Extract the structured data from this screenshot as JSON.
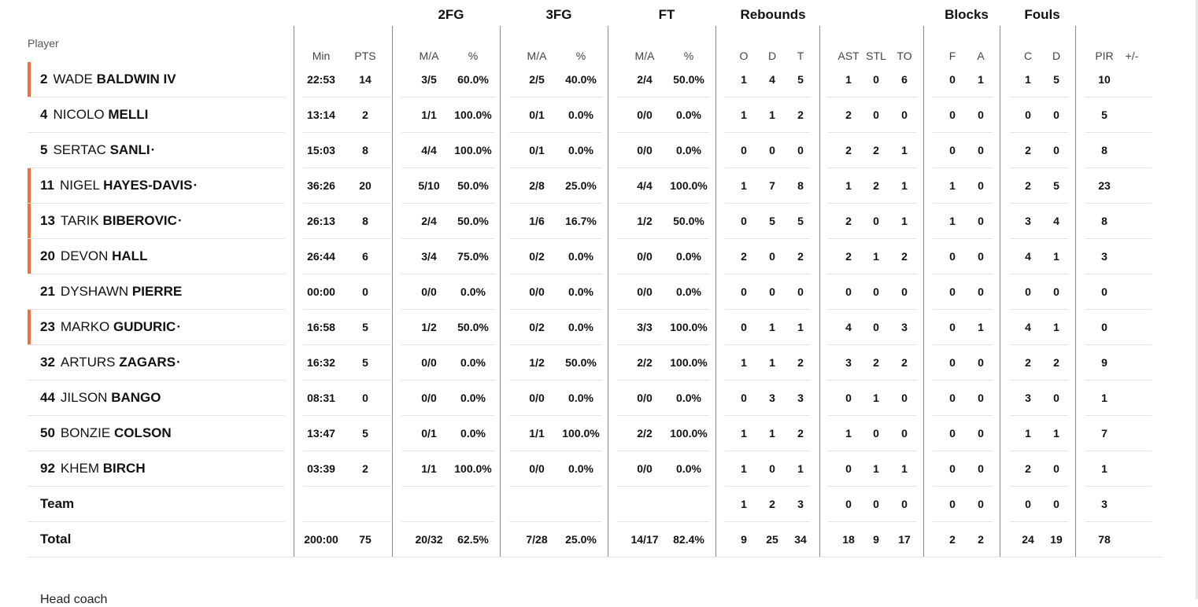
{
  "header": {
    "player_label": "Player",
    "groups": {
      "fg2": "2FG",
      "fg3": "3FG",
      "ft": "FT",
      "rebounds": "Rebounds",
      "blocks": "Blocks",
      "fouls": "Fouls"
    },
    "columns": [
      "Min",
      "PTS",
      "M/A",
      "%",
      "M/A",
      "%",
      "M/A",
      "%",
      "O",
      "D",
      "T",
      "AST",
      "STL",
      "TO",
      "F",
      "A",
      "C",
      "D",
      "PIR",
      "+/-"
    ]
  },
  "players": [
    {
      "no": "2",
      "first": "WADE",
      "last": "BALDWIN IV",
      "mark": "",
      "starter": true,
      "stats": [
        "22:53",
        "14",
        "3/5",
        "60.0%",
        "2/5",
        "40.0%",
        "2/4",
        "50.0%",
        "1",
        "4",
        "5",
        "1",
        "0",
        "6",
        "0",
        "1",
        "1",
        "5",
        "10",
        ""
      ]
    },
    {
      "no": "4",
      "first": "NICOLO",
      "last": "MELLI",
      "mark": "",
      "starter": false,
      "stats": [
        "13:14",
        "2",
        "1/1",
        "100.0%",
        "0/1",
        "0.0%",
        "0/0",
        "0.0%",
        "1",
        "1",
        "2",
        "2",
        "0",
        "0",
        "0",
        "0",
        "0",
        "0",
        "5",
        ""
      ]
    },
    {
      "no": "5",
      "first": "SERTAC",
      "last": "SANLI",
      "mark": "·",
      "starter": false,
      "stats": [
        "15:03",
        "8",
        "4/4",
        "100.0%",
        "0/1",
        "0.0%",
        "0/0",
        "0.0%",
        "0",
        "0",
        "0",
        "2",
        "2",
        "1",
        "0",
        "0",
        "2",
        "0",
        "8",
        ""
      ]
    },
    {
      "no": "11",
      "first": "NIGEL",
      "last": "HAYES-DAVIS",
      "mark": "·",
      "starter": true,
      "stats": [
        "36:26",
        "20",
        "5/10",
        "50.0%",
        "2/8",
        "25.0%",
        "4/4",
        "100.0%",
        "1",
        "7",
        "8",
        "1",
        "2",
        "1",
        "1",
        "0",
        "2",
        "5",
        "23",
        ""
      ]
    },
    {
      "no": "13",
      "first": "TARIK",
      "last": "BIBEROVIC",
      "mark": "·",
      "starter": true,
      "stats": [
        "26:13",
        "8",
        "2/4",
        "50.0%",
        "1/6",
        "16.7%",
        "1/2",
        "50.0%",
        "0",
        "5",
        "5",
        "2",
        "0",
        "1",
        "1",
        "0",
        "3",
        "4",
        "8",
        ""
      ]
    },
    {
      "no": "20",
      "first": "DEVON",
      "last": "HALL",
      "mark": "",
      "starter": true,
      "stats": [
        "26:44",
        "6",
        "3/4",
        "75.0%",
        "0/2",
        "0.0%",
        "0/0",
        "0.0%",
        "2",
        "0",
        "2",
        "2",
        "1",
        "2",
        "0",
        "0",
        "4",
        "1",
        "3",
        ""
      ]
    },
    {
      "no": "21",
      "first": "DYSHAWN",
      "last": "PIERRE",
      "mark": "",
      "starter": false,
      "stats": [
        "00:00",
        "0",
        "0/0",
        "0.0%",
        "0/0",
        "0.0%",
        "0/0",
        "0.0%",
        "0",
        "0",
        "0",
        "0",
        "0",
        "0",
        "0",
        "0",
        "0",
        "0",
        "0",
        ""
      ]
    },
    {
      "no": "23",
      "first": "MARKO",
      "last": "GUDURIC",
      "mark": "·",
      "starter": true,
      "stats": [
        "16:58",
        "5",
        "1/2",
        "50.0%",
        "0/2",
        "0.0%",
        "3/3",
        "100.0%",
        "0",
        "1",
        "1",
        "4",
        "0",
        "3",
        "0",
        "1",
        "4",
        "1",
        "0",
        ""
      ]
    },
    {
      "no": "32",
      "first": "ARTURS",
      "last": "ZAGARS",
      "mark": "·",
      "starter": false,
      "stats": [
        "16:32",
        "5",
        "0/0",
        "0.0%",
        "1/2",
        "50.0%",
        "2/2",
        "100.0%",
        "1",
        "1",
        "2",
        "3",
        "2",
        "2",
        "0",
        "0",
        "2",
        "2",
        "9",
        ""
      ]
    },
    {
      "no": "44",
      "first": "JILSON",
      "last": "BANGO",
      "mark": "",
      "starter": false,
      "stats": [
        "08:31",
        "0",
        "0/0",
        "0.0%",
        "0/0",
        "0.0%",
        "0/0",
        "0.0%",
        "0",
        "3",
        "3",
        "0",
        "1",
        "0",
        "0",
        "0",
        "3",
        "0",
        "1",
        ""
      ]
    },
    {
      "no": "50",
      "first": "BONZIE",
      "last": "COLSON",
      "mark": "",
      "starter": false,
      "stats": [
        "13:47",
        "5",
        "0/1",
        "0.0%",
        "1/1",
        "100.0%",
        "2/2",
        "100.0%",
        "1",
        "1",
        "2",
        "1",
        "0",
        "0",
        "0",
        "0",
        "1",
        "1",
        "7",
        ""
      ]
    },
    {
      "no": "92",
      "first": "KHEM",
      "last": "BIRCH",
      "mark": "",
      "starter": false,
      "stats": [
        "03:39",
        "2",
        "1/1",
        "100.0%",
        "0/0",
        "0.0%",
        "0/0",
        "0.0%",
        "1",
        "0",
        "1",
        "0",
        "1",
        "1",
        "0",
        "0",
        "2",
        "0",
        "1",
        ""
      ]
    }
  ],
  "team_row": {
    "label": "Team",
    "stats": [
      "",
      "",
      "",
      "",
      "",
      "",
      "",
      "",
      "1",
      "2",
      "3",
      "0",
      "0",
      "0",
      "0",
      "0",
      "0",
      "0",
      "3",
      ""
    ]
  },
  "total_row": {
    "label": "Total",
    "stats": [
      "200:00",
      "75",
      "20/32",
      "62.5%",
      "7/28",
      "25.0%",
      "14/17",
      "82.4%",
      "9",
      "25",
      "34",
      "18",
      "9",
      "17",
      "2",
      "2",
      "24",
      "19",
      "78",
      ""
    ]
  },
  "footer_text": "Head coach",
  "colors": {
    "starter_bar": "#e8713c",
    "divider": "#e3e3e3",
    "column_line": "#8a8a8a"
  }
}
